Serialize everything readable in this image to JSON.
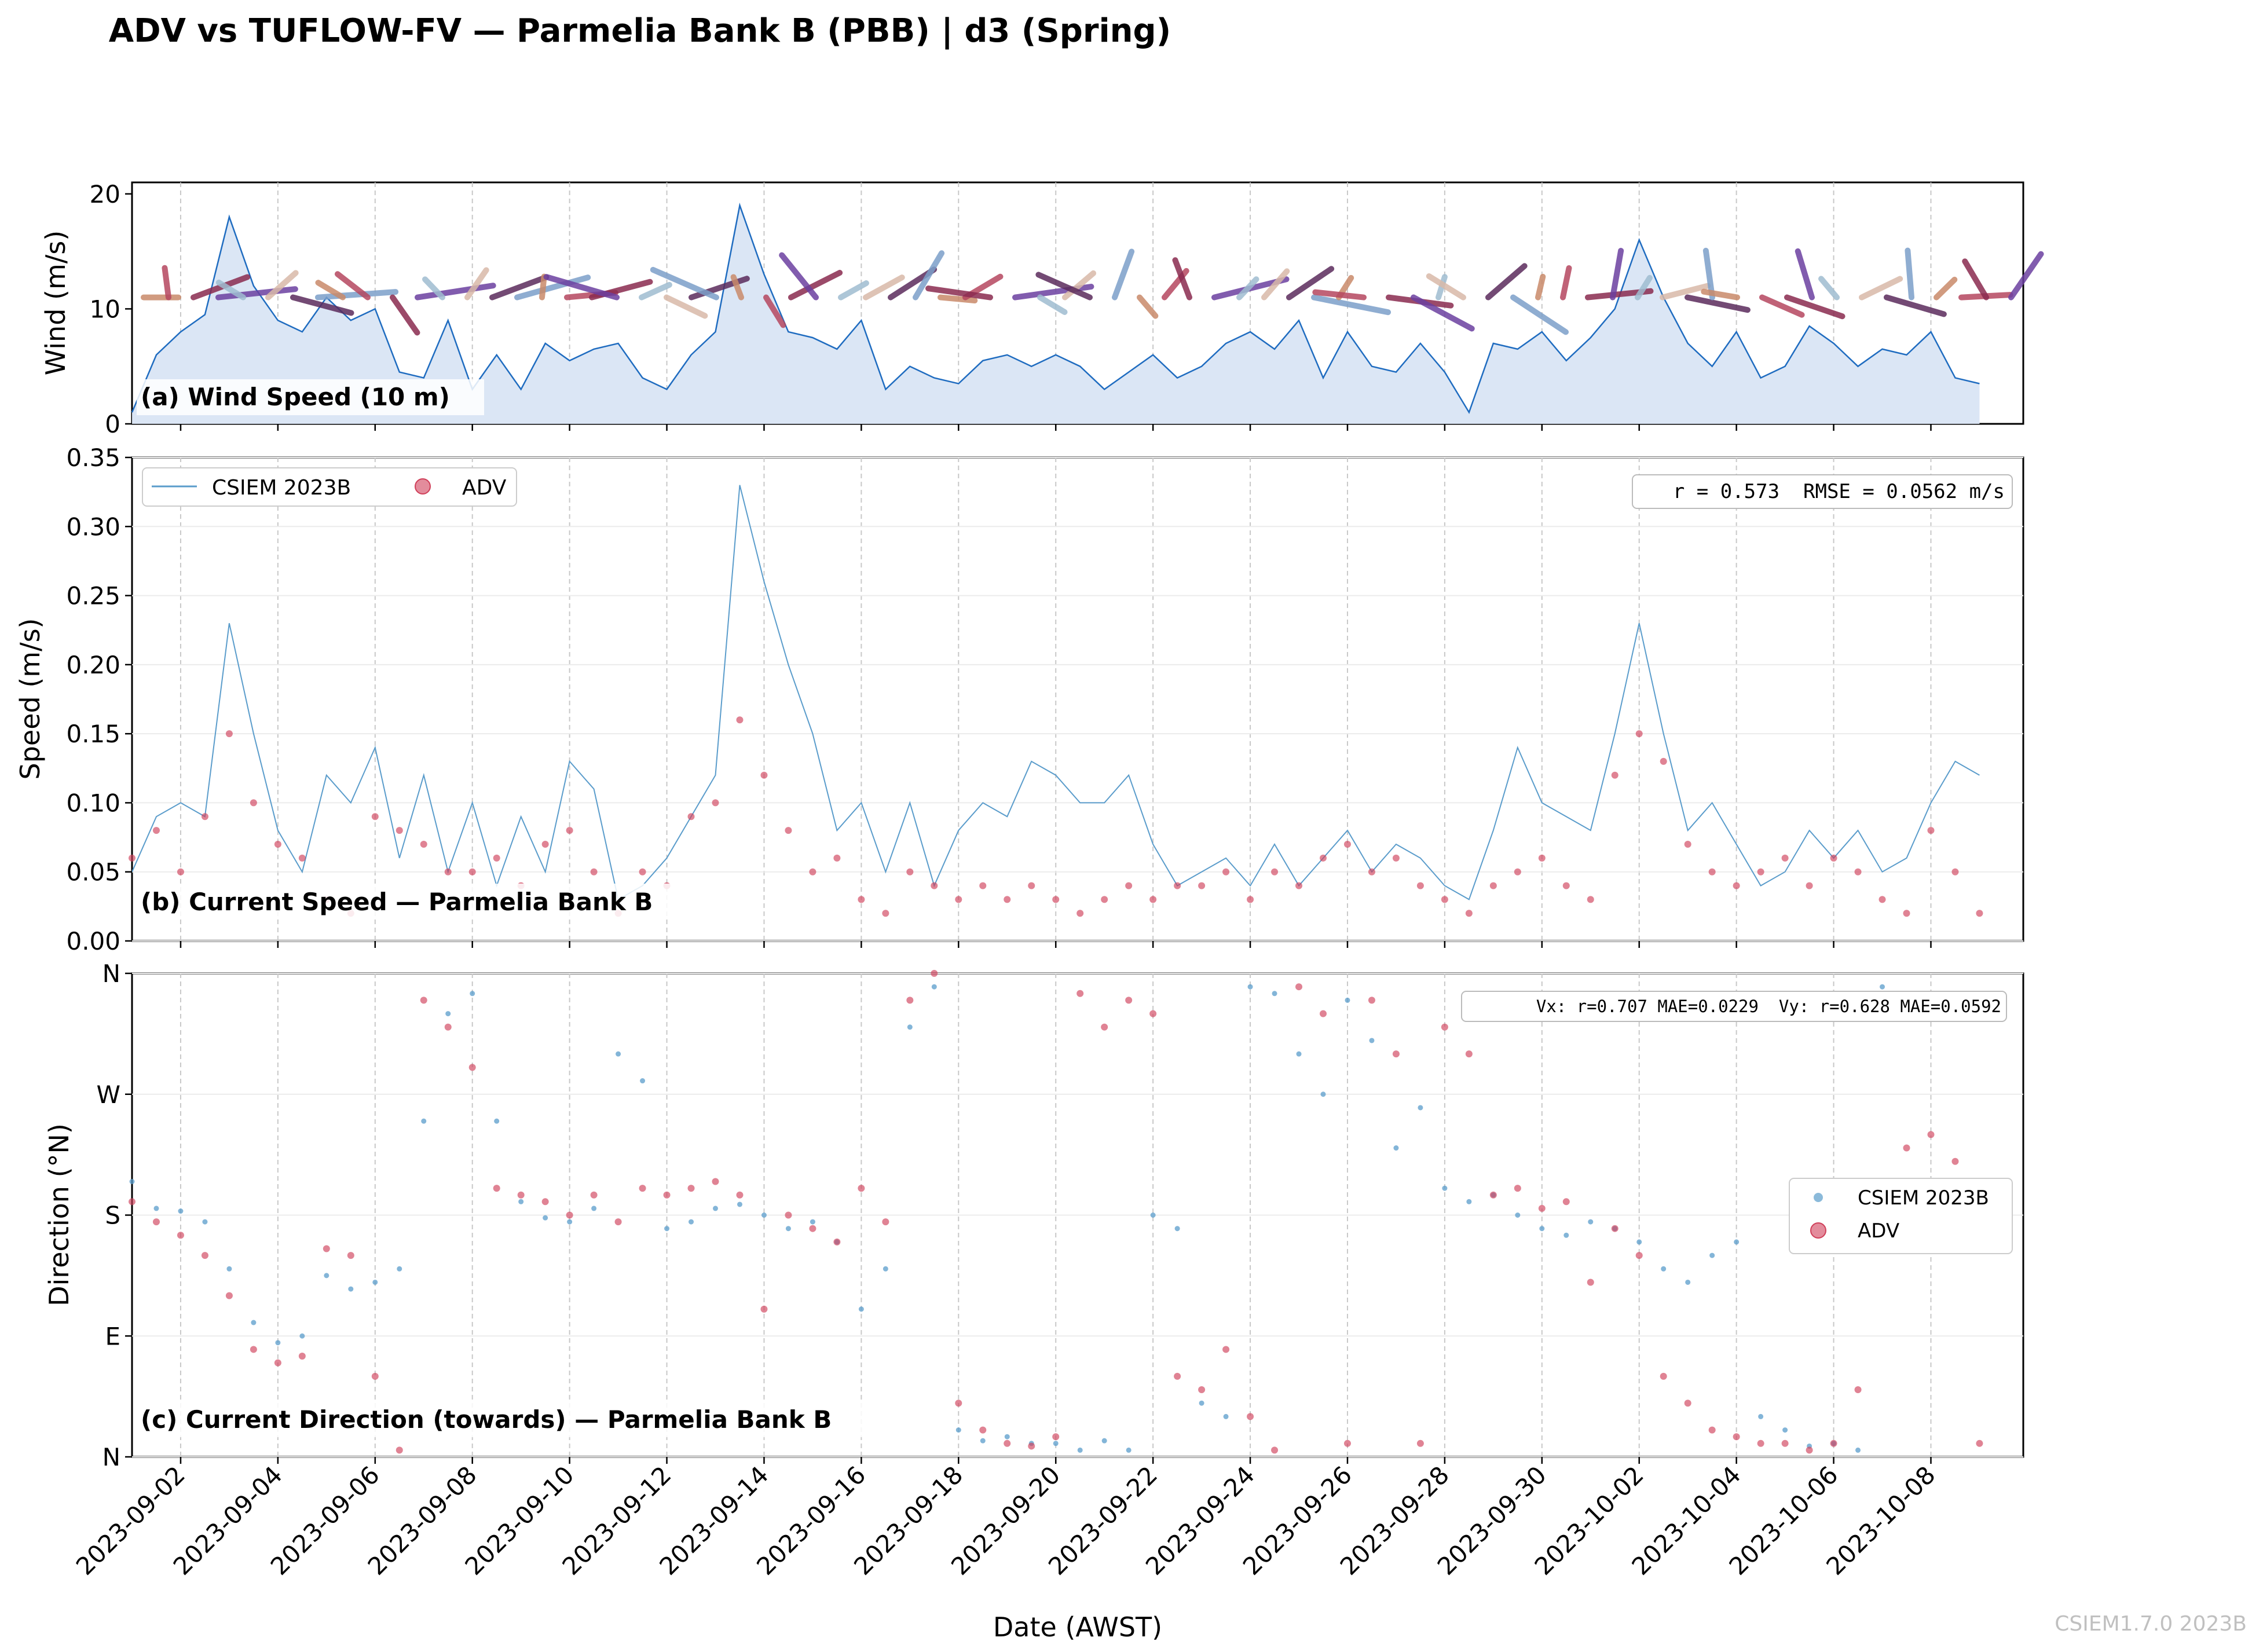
{
  "figure": {
    "title": "ADV vs TUFLOW-FV — Parmelia Bank B (PBB) | d3 (Spring)",
    "xlabel": "Date (AWST)",
    "watermark": "CSIEM1.7.0 2023B"
  },
  "colors": {
    "model": "#2b6fb5",
    "model_light": "#5a9ccb",
    "adv": "#d0405a",
    "wind_fill": "#dbe6f5",
    "wind_line": "#1f6cc0",
    "grid": "#d9d9d9"
  },
  "chart_data": [
    {
      "type": "area",
      "panel": "a",
      "annotation": "(a) Wind Speed (10 m)",
      "ylabel": "Wind (m/s)",
      "ylim": [
        0,
        21
      ],
      "yticks": [
        0,
        10,
        20
      ],
      "xlim": [
        "2023-09-01",
        "2023-10-09"
      ],
      "x_ticks": [
        "2023-09-02",
        "2023-09-04",
        "2023-09-06",
        "2023-09-08",
        "2023-09-10",
        "2023-09-12",
        "2023-09-14",
        "2023-09-16",
        "2023-09-18",
        "2023-09-20",
        "2023-09-22",
        "2023-09-24",
        "2023-09-26",
        "2023-09-28",
        "2023-09-30",
        "2023-10-02",
        "2023-10-04",
        "2023-10-06",
        "2023-10-08"
      ],
      "series": [
        {
          "x": [
            "2023-09-01",
            "2023-09-01.5",
            "2023-09-02",
            "2023-09-02.5",
            "2023-09-03",
            "2023-09-03.5",
            "2023-09-04",
            "2023-09-04.5",
            "2023-09-05",
            "2023-09-05.5",
            "2023-09-06",
            "2023-09-06.5",
            "2023-09-07",
            "2023-09-07.5",
            "2023-09-08",
            "2023-09-08.5",
            "2023-09-09",
            "2023-09-09.5",
            "2023-09-10",
            "2023-09-10.5",
            "2023-09-11",
            "2023-09-11.5",
            "2023-09-12",
            "2023-09-12.5",
            "2023-09-13",
            "2023-09-13.5",
            "2023-09-14",
            "2023-09-14.5",
            "2023-09-15",
            "2023-09-15.5",
            "2023-09-16",
            "2023-09-16.5",
            "2023-09-17",
            "2023-09-17.5",
            "2023-09-18",
            "2023-09-18.5",
            "2023-09-19",
            "2023-09-19.5",
            "2023-09-20",
            "2023-09-20.5",
            "2023-09-21",
            "2023-09-21.5",
            "2023-09-22",
            "2023-09-22.5",
            "2023-09-23",
            "2023-09-23.5",
            "2023-09-24",
            "2023-09-24.5",
            "2023-09-25",
            "2023-09-25.5",
            "2023-09-26",
            "2023-09-26.5",
            "2023-09-27",
            "2023-09-27.5",
            "2023-09-28",
            "2023-09-28.5",
            "2023-09-29",
            "2023-09-29.5",
            "2023-09-30",
            "2023-09-30.5",
            "2023-10-01",
            "2023-10-01.5",
            "2023-10-02",
            "2023-10-02.5",
            "2023-10-03",
            "2023-10-03.5",
            "2023-10-04",
            "2023-10-04.5",
            "2023-10-05",
            "2023-10-05.5",
            "2023-10-06",
            "2023-10-06.5",
            "2023-10-07",
            "2023-10-07.5",
            "2023-10-08",
            "2023-10-08.5",
            "2023-10-09"
          ],
          "values": [
            1.0,
            6.0,
            8.0,
            9.5,
            18.0,
            12.0,
            9.0,
            8.0,
            11.0,
            9.0,
            10.0,
            4.5,
            4.0,
            9.0,
            3.0,
            6.0,
            3.0,
            7.0,
            5.5,
            6.5,
            7.0,
            4.0,
            3.0,
            6.0,
            8.0,
            19.0,
            13.0,
            8.0,
            7.5,
            6.5,
            9.0,
            3.0,
            5.0,
            4.0,
            3.5,
            5.5,
            6.0,
            5.0,
            6.0,
            5.0,
            3.0,
            4.5,
            6.0,
            4.0,
            5.0,
            7.0,
            8.0,
            6.5,
            9.0,
            4.0,
            8.0,
            5.0,
            4.5,
            7.0,
            4.5,
            1.0,
            7.0,
            6.5,
            8.0,
            5.5,
            7.5,
            10.0,
            16.0,
            11.0,
            7.0,
            5.0,
            8.0,
            4.0,
            5.0,
            8.5,
            7.0,
            5.0,
            6.5,
            6.0,
            8.0,
            4.0,
            3.5
          ]
        }
      ],
      "quiver_note": "wind direction arrows drawn along y≈11 m/s"
    },
    {
      "type": "line",
      "panel": "b",
      "annotation": "(b) Current Speed — Parmelia Bank B",
      "ylabel": "Speed (m/s)",
      "ylim": [
        0,
        0.35
      ],
      "yticks": [
        "0.00",
        "0.05",
        "0.10",
        "0.15",
        "0.20",
        "0.25",
        "0.30",
        "0.35"
      ],
      "stats": "r = 0.573  RMSE = 0.0562 m/s",
      "legend_placement": "upper-left",
      "series": [
        {
          "name": "CSIEM 2023B",
          "type": "line",
          "x": [
            "2023-09-01",
            "2023-09-01.5",
            "2023-09-02",
            "2023-09-02.5",
            "2023-09-03",
            "2023-09-03.5",
            "2023-09-04",
            "2023-09-04.5",
            "2023-09-05",
            "2023-09-05.5",
            "2023-09-06",
            "2023-09-06.5",
            "2023-09-07",
            "2023-09-07.5",
            "2023-09-08",
            "2023-09-08.5",
            "2023-09-09",
            "2023-09-09.5",
            "2023-09-10",
            "2023-09-10.5",
            "2023-09-11",
            "2023-09-11.5",
            "2023-09-12",
            "2023-09-12.5",
            "2023-09-13",
            "2023-09-13.5",
            "2023-09-14",
            "2023-09-14.5",
            "2023-09-15",
            "2023-09-15.5",
            "2023-09-16",
            "2023-09-16.5",
            "2023-09-17",
            "2023-09-17.5",
            "2023-09-18",
            "2023-09-18.5",
            "2023-09-19",
            "2023-09-19.5",
            "2023-09-20",
            "2023-09-20.5",
            "2023-09-21",
            "2023-09-21.5",
            "2023-09-22",
            "2023-09-22.5",
            "2023-09-23",
            "2023-09-23.5",
            "2023-09-24",
            "2023-09-24.5",
            "2023-09-25",
            "2023-09-25.5",
            "2023-09-26",
            "2023-09-26.5",
            "2023-09-27",
            "2023-09-27.5",
            "2023-09-28",
            "2023-09-28.5",
            "2023-09-29",
            "2023-09-29.5",
            "2023-09-30",
            "2023-09-30.5",
            "2023-10-01",
            "2023-10-01.5",
            "2023-10-02",
            "2023-10-02.5",
            "2023-10-03",
            "2023-10-03.5",
            "2023-10-04",
            "2023-10-04.5",
            "2023-10-05",
            "2023-10-05.5",
            "2023-10-06",
            "2023-10-06.5",
            "2023-10-07",
            "2023-10-07.5",
            "2023-10-08",
            "2023-10-08.5",
            "2023-10-09"
          ],
          "values": [
            0.05,
            0.09,
            0.1,
            0.09,
            0.23,
            0.15,
            0.08,
            0.05,
            0.12,
            0.1,
            0.14,
            0.06,
            0.12,
            0.05,
            0.1,
            0.04,
            0.09,
            0.05,
            0.13,
            0.11,
            0.03,
            0.04,
            0.06,
            0.09,
            0.12,
            0.33,
            0.26,
            0.2,
            0.15,
            0.08,
            0.1,
            0.05,
            0.1,
            0.04,
            0.08,
            0.1,
            0.09,
            0.13,
            0.12,
            0.1,
            0.1,
            0.12,
            0.07,
            0.04,
            0.05,
            0.06,
            0.04,
            0.07,
            0.04,
            0.06,
            0.08,
            0.05,
            0.07,
            0.06,
            0.04,
            0.03,
            0.08,
            0.14,
            0.1,
            0.09,
            0.08,
            0.15,
            0.23,
            0.15,
            0.08,
            0.1,
            0.07,
            0.04,
            0.05,
            0.08,
            0.06,
            0.08,
            0.05,
            0.06,
            0.1,
            0.13,
            0.12
          ]
        },
        {
          "name": "ADV",
          "type": "scatter",
          "x": [
            "2023-09-01",
            "2023-09-01.5",
            "2023-09-02",
            "2023-09-02.5",
            "2023-09-03",
            "2023-09-03.5",
            "2023-09-04",
            "2023-09-04.5",
            "2023-09-05",
            "2023-09-05.5",
            "2023-09-06",
            "2023-09-06.5",
            "2023-09-07",
            "2023-09-07.5",
            "2023-09-08",
            "2023-09-08.5",
            "2023-09-09",
            "2023-09-09.5",
            "2023-09-10",
            "2023-09-10.5",
            "2023-09-11",
            "2023-09-11.5",
            "2023-09-12",
            "2023-09-12.5",
            "2023-09-13",
            "2023-09-13.5",
            "2023-09-14",
            "2023-09-14.5",
            "2023-09-15",
            "2023-09-15.5",
            "2023-09-16",
            "2023-09-16.5",
            "2023-09-17",
            "2023-09-17.5",
            "2023-09-18",
            "2023-09-18.5",
            "2023-09-19",
            "2023-09-19.5",
            "2023-09-20",
            "2023-09-20.5",
            "2023-09-21",
            "2023-09-21.5",
            "2023-09-22",
            "2023-09-22.5",
            "2023-09-23",
            "2023-09-23.5",
            "2023-09-24",
            "2023-09-24.5",
            "2023-09-25",
            "2023-09-25.5",
            "2023-09-26",
            "2023-09-26.5",
            "2023-09-27",
            "2023-09-27.5",
            "2023-09-28",
            "2023-09-28.5",
            "2023-09-29",
            "2023-09-29.5",
            "2023-09-30",
            "2023-09-30.5",
            "2023-10-01",
            "2023-10-01.5",
            "2023-10-02",
            "2023-10-02.5",
            "2023-10-03",
            "2023-10-03.5",
            "2023-10-04",
            "2023-10-04.5",
            "2023-10-05",
            "2023-10-05.5",
            "2023-10-06",
            "2023-10-06.5",
            "2023-10-07",
            "2023-10-07.5",
            "2023-10-08",
            "2023-10-08.5",
            "2023-10-09"
          ],
          "values": [
            0.06,
            0.08,
            0.05,
            0.09,
            0.15,
            0.1,
            0.07,
            0.06,
            0.03,
            0.02,
            0.09,
            0.08,
            0.07,
            0.05,
            0.05,
            0.06,
            0.04,
            0.07,
            0.08,
            0.05,
            0.02,
            0.05,
            0.04,
            0.09,
            0.1,
            0.16,
            0.12,
            0.08,
            0.05,
            0.06,
            0.03,
            0.02,
            0.05,
            0.04,
            0.03,
            0.04,
            0.03,
            0.04,
            0.03,
            0.02,
            0.03,
            0.04,
            0.03,
            0.04,
            0.04,
            0.05,
            0.03,
            0.05,
            0.04,
            0.06,
            0.07,
            0.05,
            0.06,
            0.04,
            0.03,
            0.02,
            0.04,
            0.05,
            0.06,
            0.04,
            0.03,
            0.12,
            0.15,
            0.13,
            0.07,
            0.05,
            0.04,
            0.05,
            0.06,
            0.04,
            0.06,
            0.05,
            0.03,
            0.02,
            0.08,
            0.05,
            0.02
          ]
        }
      ]
    },
    {
      "type": "scatter",
      "panel": "c",
      "annotation": "(c) Current Direction (towards) — Parmelia Bank B",
      "ylabel": "Direction (°N)",
      "ylim": [
        0,
        360
      ],
      "ytick_labels": [
        "N",
        "E",
        "S",
        "W",
        "N"
      ],
      "stats": "Vx: r=0.707 MAE=0.0229  Vy: r=0.628 MAE=0.0592",
      "legend_placement": "center-right",
      "series": [
        {
          "name": "CSIEM 2023B",
          "x": [
            "2023-09-01",
            "2023-09-01.5",
            "2023-09-02",
            "2023-09-02.5",
            "2023-09-03",
            "2023-09-03.5",
            "2023-09-04",
            "2023-09-04.5",
            "2023-09-05",
            "2023-09-05.5",
            "2023-09-06",
            "2023-09-06.5",
            "2023-09-07",
            "2023-09-07.5",
            "2023-09-08",
            "2023-09-08.5",
            "2023-09-09",
            "2023-09-09.5",
            "2023-09-10",
            "2023-09-10.5",
            "2023-09-11",
            "2023-09-11.5",
            "2023-09-12",
            "2023-09-12.5",
            "2023-09-13",
            "2023-09-13.5",
            "2023-09-14",
            "2023-09-14.5",
            "2023-09-15",
            "2023-09-15.5",
            "2023-09-16",
            "2023-09-16.5",
            "2023-09-17",
            "2023-09-17.5",
            "2023-09-18",
            "2023-09-18.5",
            "2023-09-19",
            "2023-09-19.5",
            "2023-09-20",
            "2023-09-20.5",
            "2023-09-21",
            "2023-09-21.5",
            "2023-09-22",
            "2023-09-22.5",
            "2023-09-23",
            "2023-09-23.5",
            "2023-09-24",
            "2023-09-24.5",
            "2023-09-25",
            "2023-09-25.5",
            "2023-09-26",
            "2023-09-26.5",
            "2023-09-27",
            "2023-09-27.5",
            "2023-09-28",
            "2023-09-28.5",
            "2023-09-29",
            "2023-09-29.5",
            "2023-09-30",
            "2023-09-30.5",
            "2023-10-01",
            "2023-10-01.5",
            "2023-10-02",
            "2023-10-02.5",
            "2023-10-03",
            "2023-10-03.5",
            "2023-10-04",
            "2023-10-04.5",
            "2023-10-05",
            "2023-10-05.5",
            "2023-10-06",
            "2023-10-06.5",
            "2023-10-07",
            "2023-10-07.5",
            "2023-10-08",
            "2023-10-08.5",
            "2023-10-09"
          ],
          "values": [
            205,
            185,
            183,
            175,
            140,
            100,
            85,
            90,
            135,
            125,
            130,
            140,
            250,
            330,
            345,
            250,
            190,
            178,
            175,
            185,
            300,
            280,
            170,
            175,
            185,
            188,
            180,
            170,
            175,
            160,
            110,
            140,
            320,
            350,
            20,
            12,
            15,
            10,
            10,
            5,
            12,
            5,
            180,
            170,
            40,
            30,
            350,
            345,
            300,
            270,
            340,
            310,
            230,
            260,
            200,
            190,
            195,
            180,
            170,
            165,
            175,
            170,
            160,
            140,
            130,
            150,
            160,
            30,
            20,
            8,
            10,
            5,
            350,
            180,
            200,
            190,
            185
          ]
        },
        {
          "name": "ADV",
          "x": [
            "2023-09-01",
            "2023-09-01.5",
            "2023-09-02",
            "2023-09-02.5",
            "2023-09-03",
            "2023-09-03.5",
            "2023-09-04",
            "2023-09-04.5",
            "2023-09-05",
            "2023-09-05.5",
            "2023-09-06",
            "2023-09-06.5",
            "2023-09-07",
            "2023-09-07.5",
            "2023-09-08",
            "2023-09-08.5",
            "2023-09-09",
            "2023-09-09.5",
            "2023-09-10",
            "2023-09-10.5",
            "2023-09-11",
            "2023-09-11.5",
            "2023-09-12",
            "2023-09-12.5",
            "2023-09-13",
            "2023-09-13.5",
            "2023-09-14",
            "2023-09-14.5",
            "2023-09-15",
            "2023-09-15.5",
            "2023-09-16",
            "2023-09-16.5",
            "2023-09-17",
            "2023-09-17.5",
            "2023-09-18",
            "2023-09-18.5",
            "2023-09-19",
            "2023-09-19.5",
            "2023-09-20",
            "2023-09-20.5",
            "2023-09-21",
            "2023-09-21.5",
            "2023-09-22",
            "2023-09-22.5",
            "2023-09-23",
            "2023-09-23.5",
            "2023-09-24",
            "2023-09-24.5",
            "2023-09-25",
            "2023-09-25.5",
            "2023-09-26",
            "2023-09-26.5",
            "2023-09-27",
            "2023-09-27.5",
            "2023-09-28",
            "2023-09-28.5",
            "2023-09-29",
            "2023-09-29.5",
            "2023-09-30",
            "2023-09-30.5",
            "2023-10-01",
            "2023-10-01.5",
            "2023-10-02",
            "2023-10-02.5",
            "2023-10-03",
            "2023-10-03.5",
            "2023-10-04",
            "2023-10-04.5",
            "2023-10-05",
            "2023-10-05.5",
            "2023-10-06",
            "2023-10-06.5",
            "2023-10-07",
            "2023-10-07.5",
            "2023-10-08",
            "2023-10-08.5",
            "2023-10-09"
          ],
          "values": [
            190,
            175,
            165,
            150,
            120,
            80,
            70,
            75,
            155,
            150,
            60,
            5,
            340,
            320,
            290,
            200,
            195,
            190,
            180,
            195,
            175,
            200,
            195,
            200,
            205,
            195,
            110,
            180,
            170,
            160,
            200,
            175,
            340,
            360,
            40,
            20,
            10,
            8,
            15,
            345,
            320,
            340,
            330,
            60,
            50,
            80,
            30,
            5,
            350,
            330,
            10,
            340,
            300,
            10,
            320,
            300,
            195,
            200,
            185,
            190,
            130,
            170,
            150,
            60,
            40,
            20,
            15,
            10,
            10,
            5,
            10,
            50,
            200,
            230,
            240,
            220,
            10
          ]
        }
      ]
    }
  ]
}
